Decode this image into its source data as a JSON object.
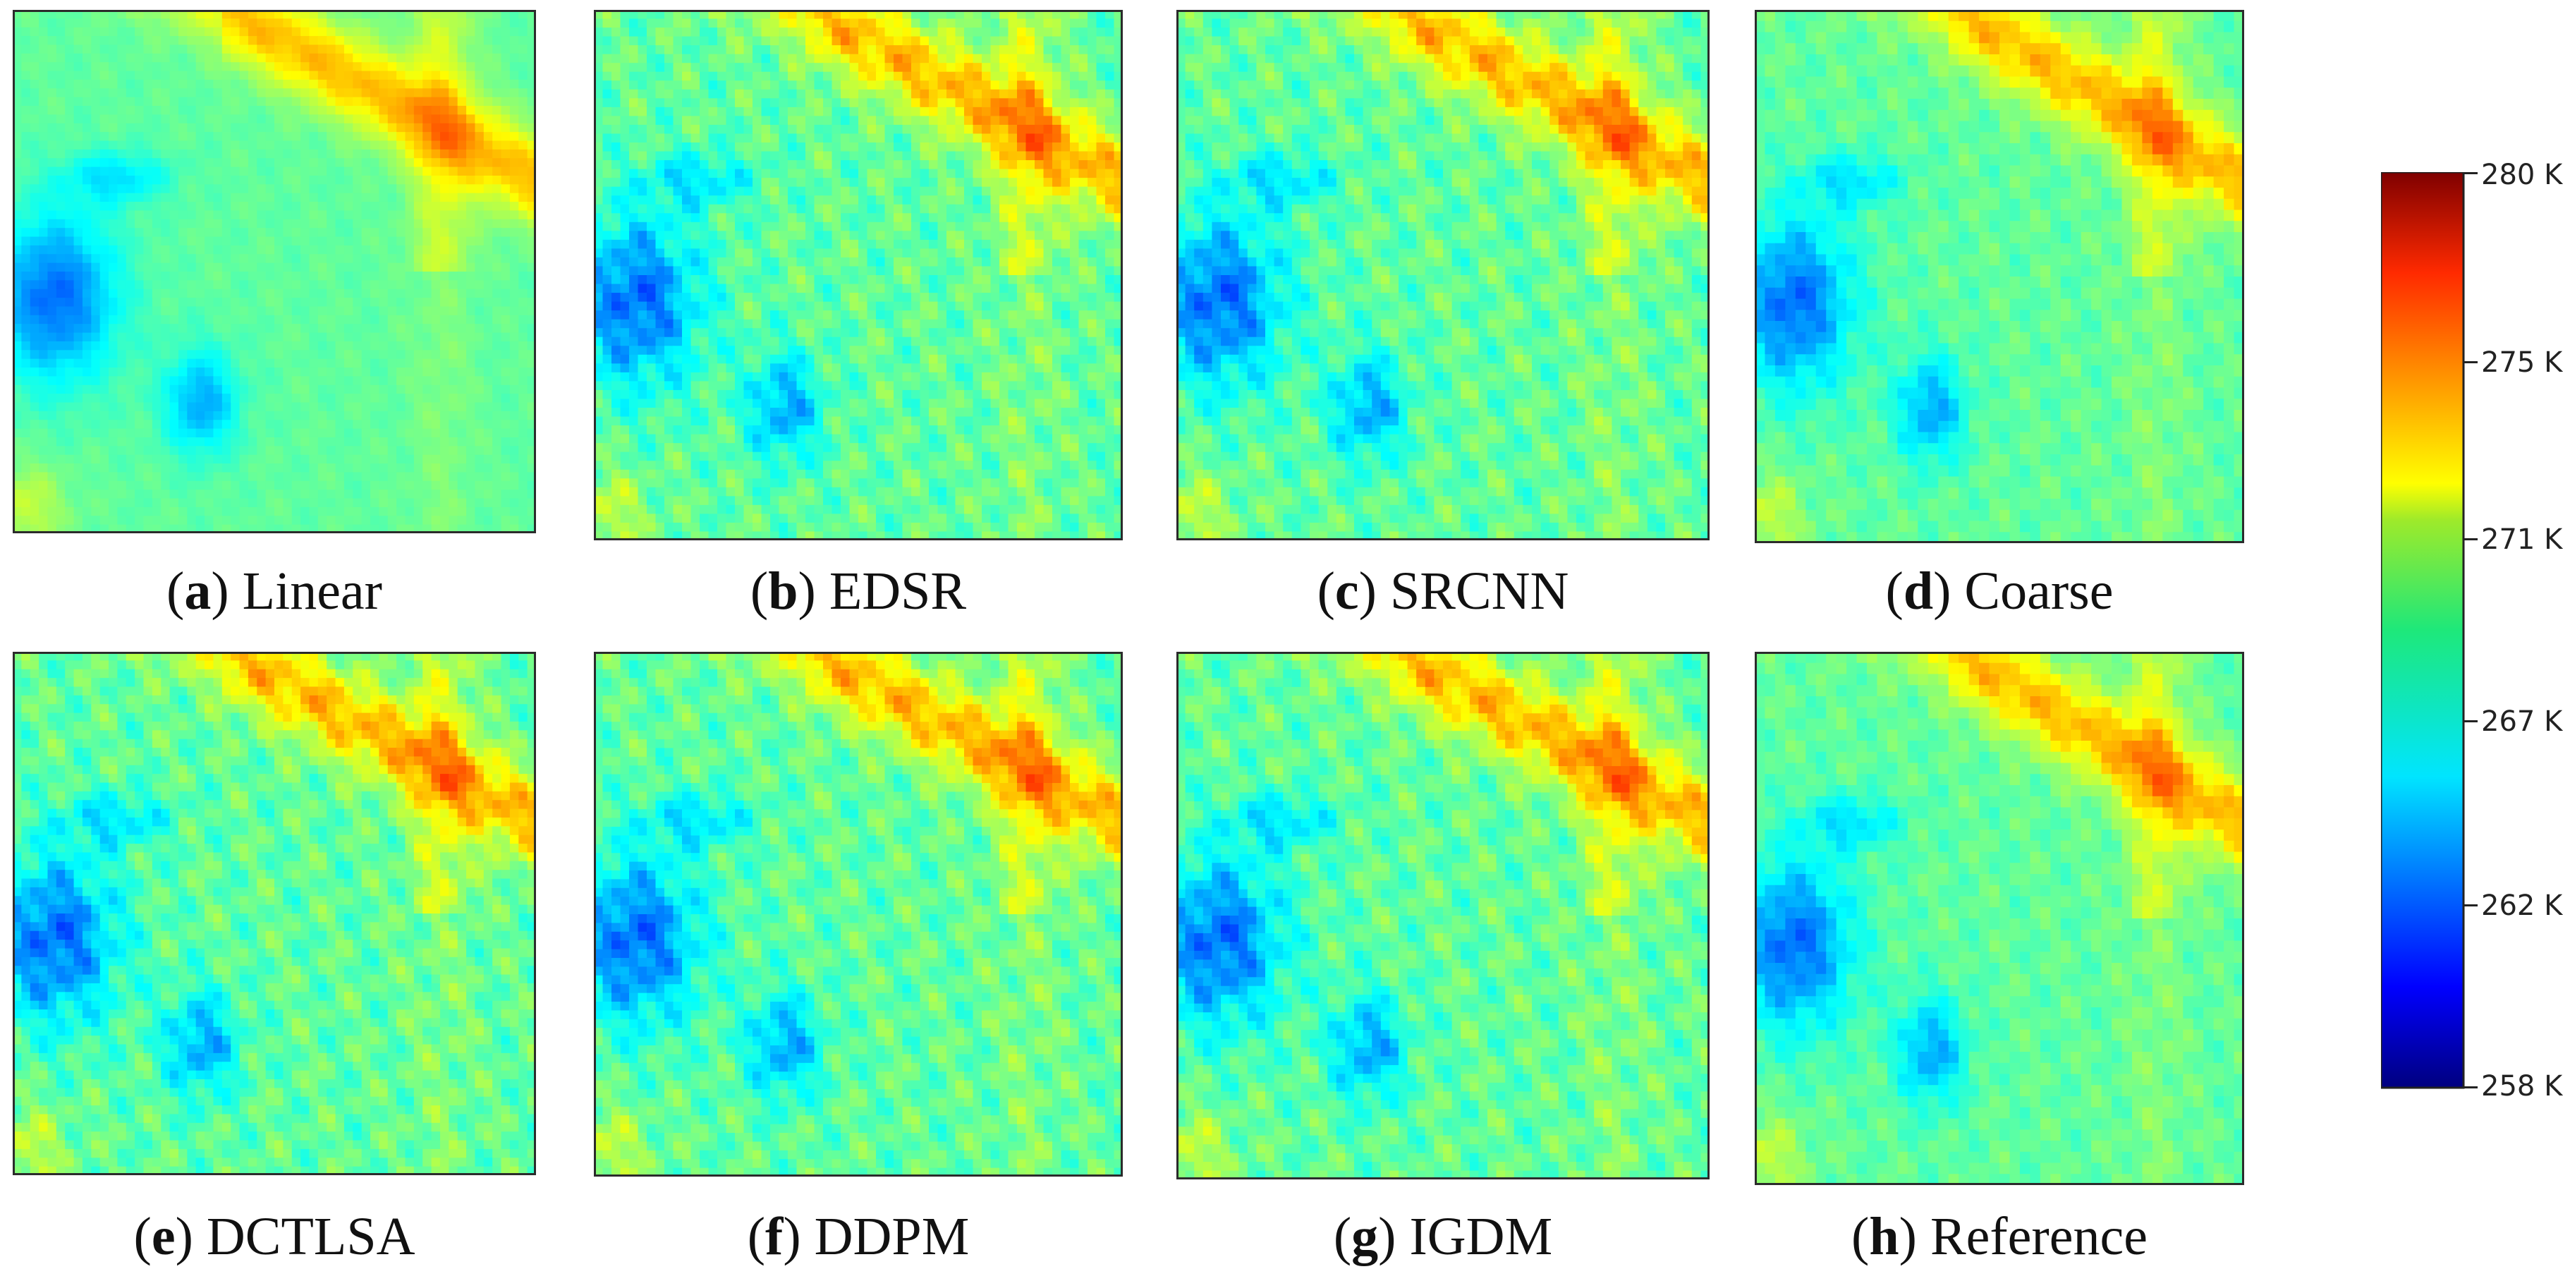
{
  "figure": {
    "panels": [
      {
        "letter": "a",
        "name": "Linear"
      },
      {
        "letter": "b",
        "name": "EDSR"
      },
      {
        "letter": "c",
        "name": "SRCNN"
      },
      {
        "letter": "d",
        "name": "Coarse"
      },
      {
        "letter": "e",
        "name": "DCTLSA"
      },
      {
        "letter": "f",
        "name": "DDPM"
      },
      {
        "letter": "g",
        "name": "IGDM"
      },
      {
        "letter": "h",
        "name": "Reference"
      }
    ],
    "colorbar": {
      "colormap": "jet",
      "min": 258,
      "max": 280,
      "unit": "K",
      "ticks": [
        "280 K",
        "275 K",
        "271 K",
        "267 K",
        "262 K",
        "258 K"
      ],
      "tick_values": [
        280,
        275,
        271,
        267,
        262,
        258
      ]
    }
  }
}
